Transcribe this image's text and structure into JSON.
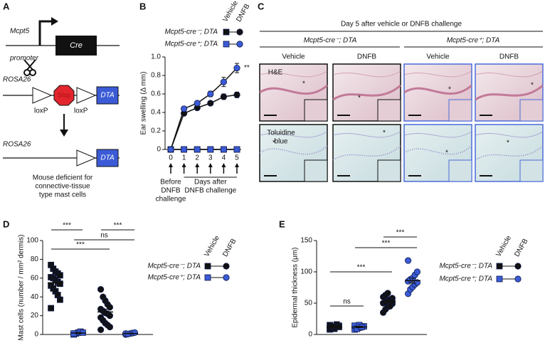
{
  "figure": {
    "panel_labels": [
      "A",
      "B",
      "C",
      "D",
      "E"
    ],
    "diagram_a": {
      "gene": "Mcpt5",
      "promoter": "promoter",
      "cre": "Cre",
      "rosa_1": "ROSA26",
      "stop": "Stop",
      "loxp": "loxP",
      "dta": "DTA",
      "rosa_2": "ROSA26",
      "caption": [
        "Mouse deficient for",
        "connective-tissue",
        "type mast cells"
      ]
    },
    "panel_c": {
      "title": "Day 5 after vehicle or DNFB challenge",
      "groups": [
        "Mcpt5-cre⁻; DTA",
        "Mcpt5-cre⁺; DTA"
      ],
      "columns": [
        "Vehicle",
        "DNFB"
      ],
      "rows": [
        [
          "H&E"
        ],
        [
          "Toluidine",
          "blue"
        ]
      ],
      "asterisk": "*"
    }
  },
  "chart_data": [
    {
      "type": "line",
      "ylabel": "Ear swelling (Δ mm)",
      "x": [
        0,
        1,
        2,
        3,
        4,
        5
      ],
      "xlim": [
        0,
        5
      ],
      "xticks": [
        0,
        1,
        2,
        3,
        4,
        5
      ],
      "ylim": [
        0,
        1
      ],
      "yticks": [
        0,
        0.2,
        0.4,
        0.6,
        0.8,
        {
          "value": 1,
          "label": "1.0"
        }
      ],
      "x_notes": [
        [
          "Before",
          "DNFB",
          "challenge"
        ],
        [
          "Days after",
          "DNFB challenge"
        ]
      ],
      "annotation": "**",
      "series": [
        {
          "name": "Vehicle",
          "group": "Mcpt5-cre⁻; DTA",
          "color": "#111111",
          "marker": "square",
          "values": [
            0,
            0,
            0,
            0,
            0,
            0
          ]
        },
        {
          "name": "DNFB",
          "group": "Mcpt5-cre⁻; DTA",
          "color": "#111111",
          "marker": "circle",
          "values": [
            0,
            0.39,
            0.45,
            0.5,
            0.57,
            0.59
          ],
          "errors": [
            0,
            0.02,
            0.02,
            0.02,
            0.03,
            0.03
          ]
        },
        {
          "name": "Vehicle",
          "group": "Mcpt5-cre⁺; DTA",
          "color": "#3b5bd6",
          "marker": "square",
          "values": [
            0,
            0,
            0,
            0,
            0,
            0
          ]
        },
        {
          "name": "DNFB",
          "group": "Mcpt5-cre⁺; DTA",
          "color": "#3b5bd6",
          "marker": "circle",
          "values": [
            0,
            0.44,
            0.5,
            0.6,
            0.73,
            0.88
          ],
          "errors": [
            0,
            0.02,
            0.02,
            0.03,
            0.05,
            0.05
          ]
        }
      ]
    },
    {
      "type": "strip",
      "ylabel": "Mast cells (number / mm² dermis)",
      "ylim": [
        0,
        100
      ],
      "yticks": [
        0,
        20,
        40,
        60,
        80,
        100
      ],
      "brackets": [
        {
          "label": "***",
          "between": [
            0,
            1
          ]
        },
        {
          "label": "***",
          "between": [
            2,
            3
          ]
        },
        {
          "label": "ns",
          "between": [
            1,
            3
          ]
        },
        {
          "label": "***",
          "between": [
            0,
            2
          ]
        }
      ],
      "series": [
        {
          "name": "Vehicle",
          "group": "Mcpt5-cre⁻; DTA",
          "color": "#111111",
          "marker": "square",
          "values": [
            74,
            70,
            67,
            65,
            63,
            61,
            60,
            58,
            56,
            54,
            52,
            49,
            46,
            42,
            37,
            28
          ],
          "mean": 55,
          "sem": 3
        },
        {
          "name": "Vehicle",
          "group": "Mcpt5-cre⁺; DTA",
          "color": "#3b5bd6",
          "marker": "square",
          "values": [
            0,
            1,
            2,
            3,
            2,
            1
          ],
          "mean": 1.5,
          "sem": 0.5
        },
        {
          "name": "DNFB",
          "group": "Mcpt5-cre⁻; DTA",
          "color": "#111111",
          "marker": "circle",
          "values": [
            48,
            40,
            36,
            32,
            29,
            27,
            25,
            23,
            22,
            20,
            18,
            15,
            12,
            10,
            8,
            5
          ],
          "mean": 24,
          "sem": 3
        },
        {
          "name": "DNFB",
          "group": "Mcpt5-cre⁺; DTA",
          "color": "#3b5bd6",
          "marker": "circle",
          "values": [
            0,
            0.5,
            1,
            1.5,
            2,
            1,
            0.5
          ],
          "mean": 1,
          "sem": 0.3
        }
      ]
    },
    {
      "type": "strip",
      "ylabel": "Epidermal thickness (μm)",
      "ylim": [
        0,
        150
      ],
      "yticks": [
        0,
        50,
        100,
        150
      ],
      "brackets": [
        {
          "label": "ns",
          "between": [
            0,
            1
          ]
        },
        {
          "label": "***",
          "between": [
            0,
            2
          ]
        },
        {
          "label": "***",
          "between": [
            1,
            3
          ]
        },
        {
          "label": "***",
          "between": [
            2,
            3
          ]
        }
      ],
      "series": [
        {
          "name": "Vehicle",
          "group": "Mcpt5-cre⁻; DTA",
          "color": "#111111",
          "marker": "square",
          "values": [
            8,
            10,
            12,
            13,
            14,
            15,
            11,
            9,
            16,
            12,
            10,
            13
          ],
          "mean": 12,
          "sem": 1
        },
        {
          "name": "Vehicle",
          "group": "Mcpt5-cre⁺; DTA",
          "color": "#3b5bd6",
          "marker": "square",
          "values": [
            8,
            10,
            11,
            12,
            13,
            14,
            9,
            15,
            12
          ],
          "mean": 12,
          "sem": 1
        },
        {
          "name": "DNFB",
          "group": "Mcpt5-cre⁻; DTA",
          "color": "#111111",
          "marker": "circle",
          "values": [
            35,
            40,
            44,
            47,
            49,
            50,
            52,
            54,
            56,
            58,
            60,
            63,
            66,
            45,
            53
          ],
          "mean": 52,
          "sem": 2
        },
        {
          "name": "DNFB",
          "group": "Mcpt5-cre⁺; DTA",
          "color": "#3b5bd6",
          "marker": "circle",
          "values": [
            65,
            72,
            76,
            80,
            83,
            85,
            88,
            90,
            95,
            100,
            118
          ],
          "mean": 86,
          "sem": 4
        }
      ]
    }
  ]
}
